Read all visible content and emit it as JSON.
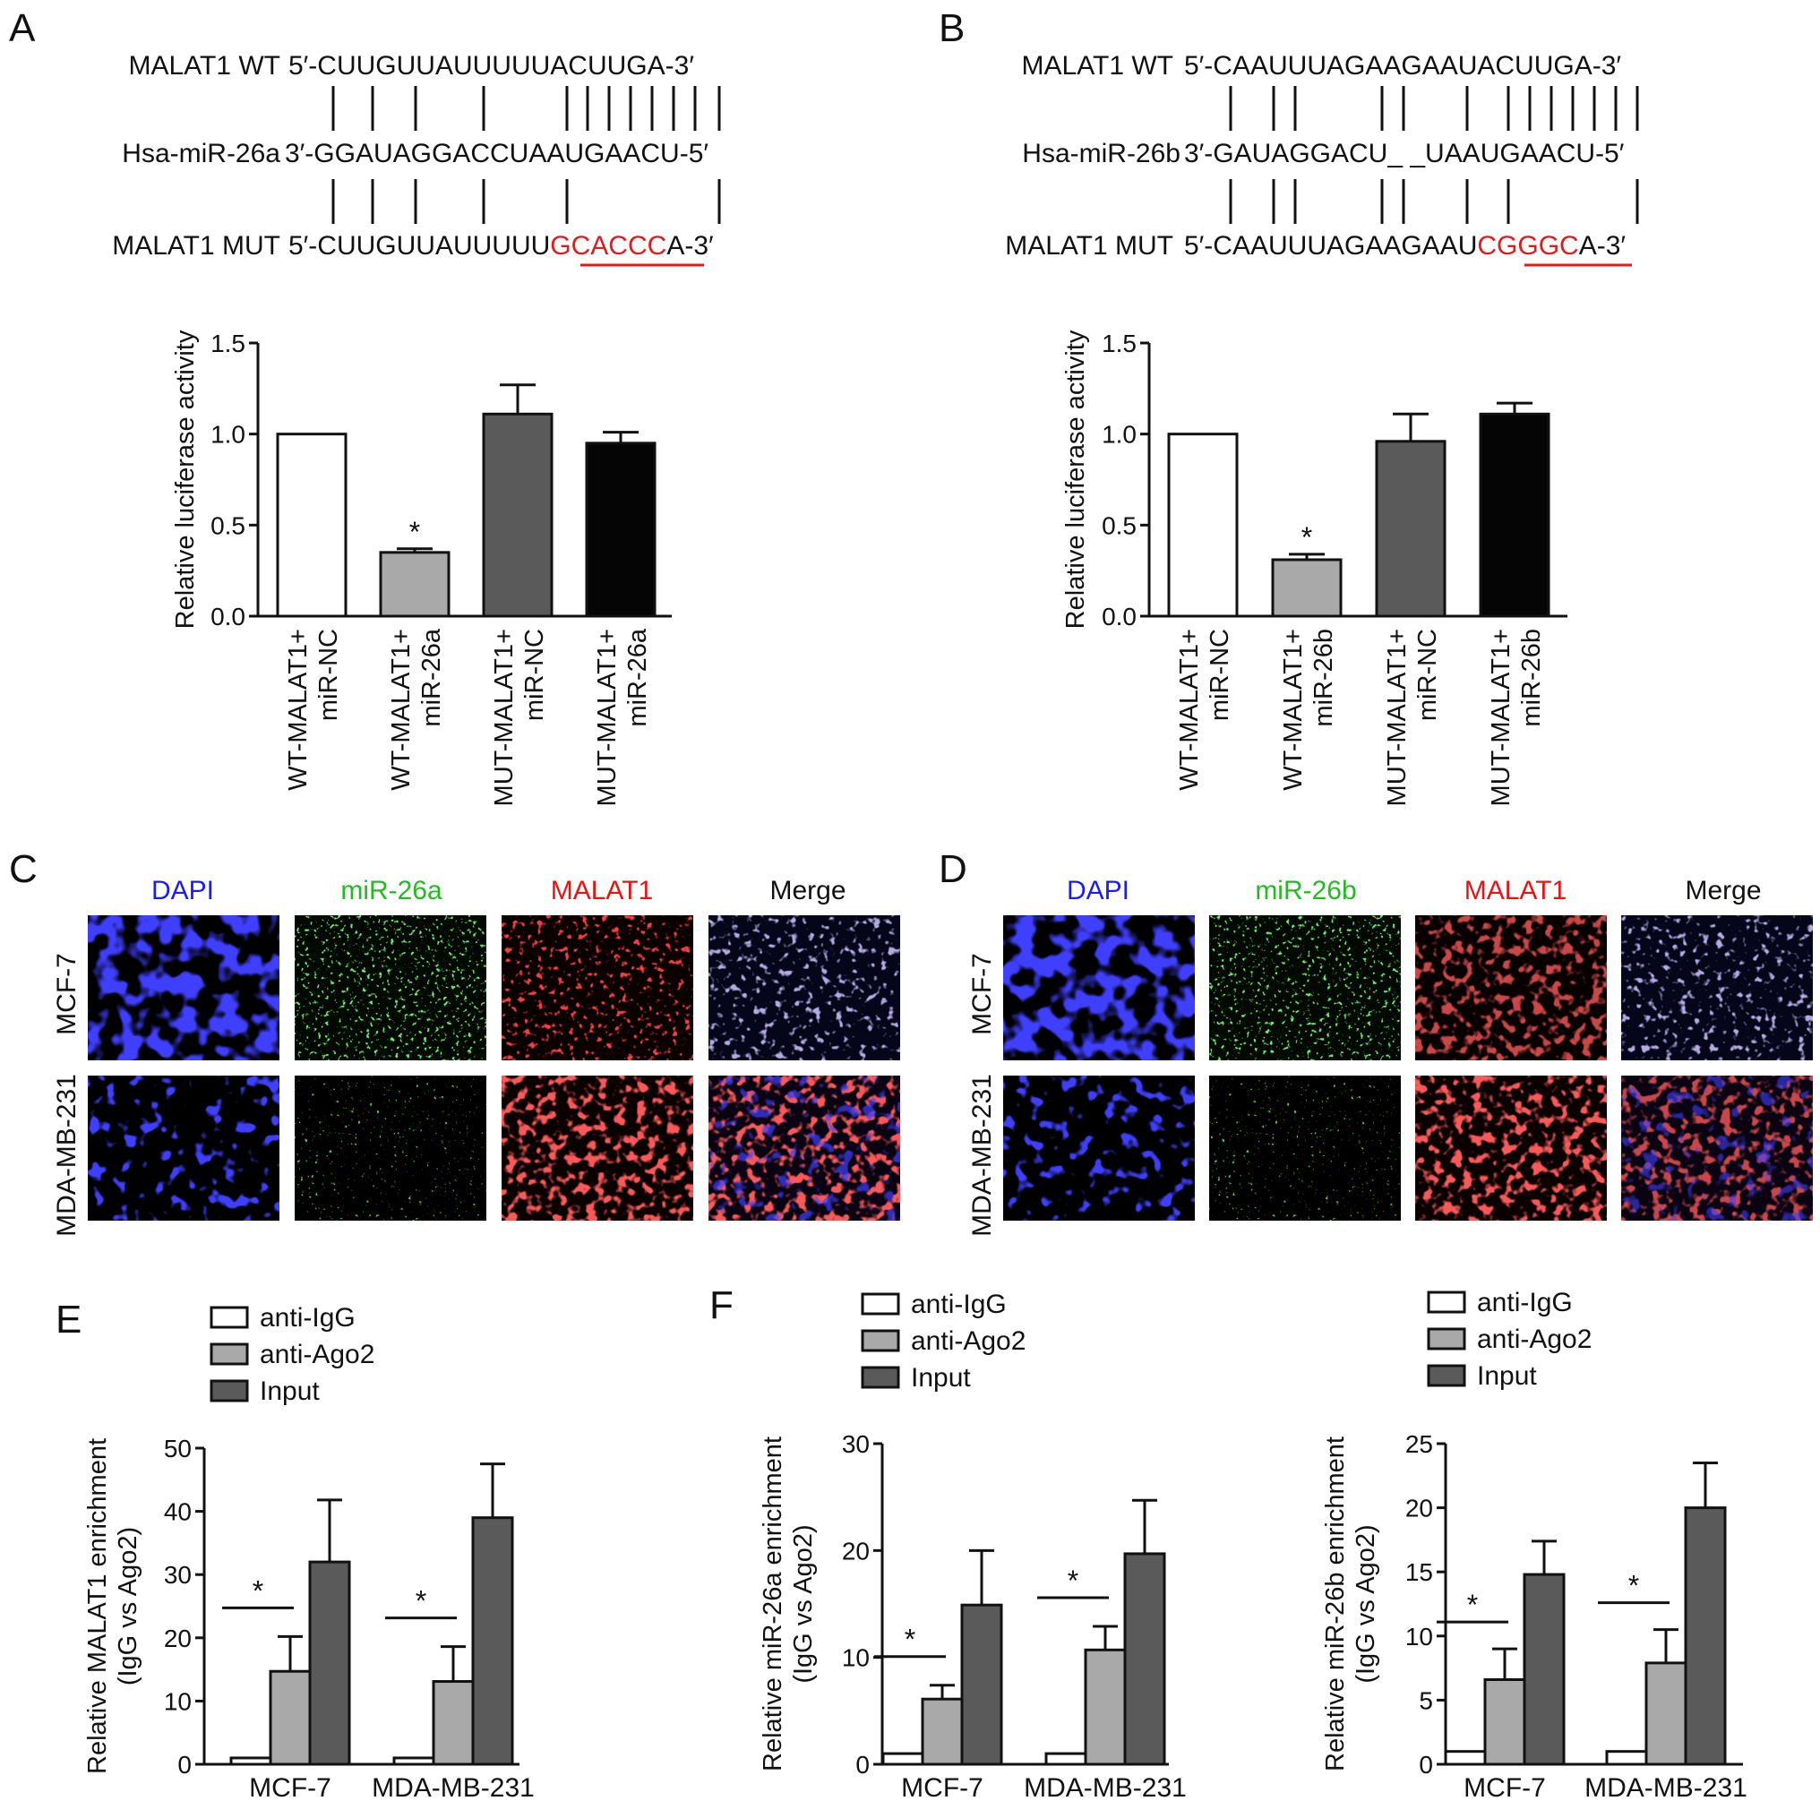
{
  "panels": {
    "A": {
      "letter": "A",
      "wt_label": "MALAT1 WT",
      "wt_seq": "5′-CUUGUUAUUUUUACUUGA-3′",
      "mir_label": "Hsa-miR-26a",
      "mir_seq": "3′-GGAUAGGACCUAAUGAACU-5′",
      "mut_label": "MALAT1 MUT",
      "mut_seq_pre": "5′-CUUGUUAUUUUU",
      "mut_seq_red": "GCACCC",
      "mut_seq_post": "A-3′"
    },
    "B": {
      "letter": "B",
      "wt_label": "MALAT1 WT",
      "wt_seq": "5′-CAAUUUAGAAGAAUACUUGA-3′",
      "mir_label": "Hsa-miR-26b",
      "mir_seq": "3′-GAUAGGACU_ _UAAUGAACU-5′",
      "mut_label": "MALAT1 MUT",
      "mut_seq_pre": "5′-CAAUUUAGAAGAAU",
      "mut_seq_red": "CGGGC",
      "mut_seq_post": "A-3′"
    },
    "C": {
      "letter": "C",
      "headers": [
        "DAPI",
        "miR-26a",
        "MALAT1",
        "Merge"
      ],
      "rows": [
        "MCF-7",
        "MDA-MB-231"
      ]
    },
    "D": {
      "letter": "D",
      "headers": [
        "DAPI",
        "miR-26b",
        "MALAT1",
        "Merge"
      ],
      "rows": [
        "MCF-7",
        "MDA-MB-231"
      ]
    },
    "E": {
      "letter": "E"
    },
    "F": {
      "letter": "F"
    }
  },
  "colors": {
    "dapi": "#1a1aff",
    "green": "#22cc22",
    "red": "#ee1111",
    "mut_red": "#e3191c",
    "bar_white": "#ffffff",
    "bar_light": "#a9a9a9",
    "bar_dark": "#5a5a5a",
    "bar_black": "#050505"
  },
  "chart_data": [
    {
      "id": "luc_a",
      "type": "bar",
      "ylabel": "Relative luciferase activity",
      "yticks": [
        "0.0",
        "0.5",
        "1.0",
        "1.5"
      ],
      "ylim": [
        0,
        1.5
      ],
      "categories": [
        "WT-MALAT1+ miR-NC",
        "WT-MALAT1+ miR-26a",
        "MUT-MALAT1+ miR-NC",
        "MUT-MALAT1+ miR-26a"
      ],
      "category_lines": [
        [
          "WT-MALAT1+",
          "miR-NC"
        ],
        [
          "WT-MALAT1+",
          "miR-26a"
        ],
        [
          "MUT-MALAT1+",
          "miR-NC"
        ],
        [
          "MUT-MALAT1+",
          "miR-26a"
        ]
      ],
      "values": [
        1.0,
        0.35,
        1.11,
        0.95
      ],
      "errors": [
        0,
        0.02,
        0.16,
        0.06
      ],
      "fills": [
        "#ffffff",
        "#a9a9a9",
        "#5a5a5a",
        "#050505"
      ],
      "significance": [
        1
      ],
      "star": "*"
    },
    {
      "id": "luc_b",
      "type": "bar",
      "ylabel": "Relative luciferase activity",
      "yticks": [
        "0.0",
        "0.5",
        "1.0",
        "1.5"
      ],
      "ylim": [
        0,
        1.5
      ],
      "categories": [
        "WT-MALAT1+ miR-NC",
        "WT-MALAT1+ miR-26b",
        "MUT-MALAT1+ miR-NC",
        "MUT-MALAT1+ miR-26b"
      ],
      "category_lines": [
        [
          "WT-MALAT1+",
          "miR-NC"
        ],
        [
          "WT-MALAT1+",
          "miR-26b"
        ],
        [
          "MUT-MALAT1+",
          "miR-NC"
        ],
        [
          "MUT-MALAT1+",
          "miR-26b"
        ]
      ],
      "values": [
        1.0,
        0.31,
        0.96,
        1.11
      ],
      "errors": [
        0,
        0.03,
        0.15,
        0.06
      ],
      "fills": [
        "#ffffff",
        "#a9a9a9",
        "#5a5a5a",
        "#050505"
      ],
      "significance": [
        1
      ],
      "star": "*"
    },
    {
      "id": "rip_malat1",
      "type": "bar",
      "ylabel_lines": [
        "Relative MALAT1 enrichment",
        "(IgG vs Ago2)"
      ],
      "yticks": [
        "0",
        "10",
        "20",
        "30",
        "40",
        "50"
      ],
      "ylim": [
        0,
        50
      ],
      "legend": [
        "anti-IgG",
        "anti-Ago2",
        "Input"
      ],
      "legend_position": "top",
      "categories": [
        "MCF-7",
        "MDA-MB-231"
      ],
      "series": [
        {
          "name": "anti-IgG",
          "values": [
            1,
            1
          ],
          "errors": [
            0,
            0
          ],
          "fill": "#ffffff"
        },
        {
          "name": "anti-Ago2",
          "values": [
            14.7,
            13.1
          ],
          "errors": [
            5.5,
            5.5
          ],
          "fill": "#a9a9a9"
        },
        {
          "name": "Input",
          "values": [
            32.0,
            39.0
          ],
          "errors": [
            9.8,
            8.5
          ],
          "fill": "#5a5a5a"
        }
      ],
      "star": "*"
    },
    {
      "id": "rip_mir26a",
      "type": "bar",
      "ylabel_lines": [
        "Relative miR-26a enrichment",
        "(IgG vs Ago2)"
      ],
      "yticks": [
        "0",
        "10",
        "20",
        "30"
      ],
      "ylim": [
        0,
        30
      ],
      "legend": [
        "anti-IgG",
        "anti-Ago2",
        "Input"
      ],
      "legend_position": "top",
      "categories": [
        "MCF-7",
        "MDA-MB-231"
      ],
      "series": [
        {
          "name": "anti-IgG",
          "values": [
            1,
            1
          ],
          "errors": [
            0,
            0
          ],
          "fill": "#ffffff"
        },
        {
          "name": "anti-Ago2",
          "values": [
            6.1,
            10.7
          ],
          "errors": [
            1.3,
            2.2
          ],
          "fill": "#a9a9a9"
        },
        {
          "name": "Input",
          "values": [
            14.9,
            19.7
          ],
          "errors": [
            5.1,
            5.0
          ],
          "fill": "#5a5a5a"
        }
      ],
      "star": "*"
    },
    {
      "id": "rip_mir26b",
      "type": "bar",
      "ylabel_lines": [
        "Relative miR-26b enrichment",
        "(IgG vs Ago2)"
      ],
      "yticks": [
        "0",
        "5",
        "10",
        "15",
        "20",
        "25"
      ],
      "ylim": [
        0,
        25
      ],
      "legend": [
        "anti-IgG",
        "anti-Ago2",
        "Input"
      ],
      "legend_position": "top",
      "categories": [
        "MCF-7",
        "MDA-MB-231"
      ],
      "series": [
        {
          "name": "anti-IgG",
          "values": [
            1,
            1
          ],
          "errors": [
            0,
            0
          ],
          "fill": "#ffffff"
        },
        {
          "name": "anti-Ago2",
          "values": [
            6.6,
            7.9
          ],
          "errors": [
            2.4,
            2.6
          ],
          "fill": "#a9a9a9"
        },
        {
          "name": "Input",
          "values": [
            14.8,
            20.0
          ],
          "errors": [
            2.6,
            3.5
          ],
          "fill": "#5a5a5a"
        }
      ],
      "star": "*"
    }
  ]
}
